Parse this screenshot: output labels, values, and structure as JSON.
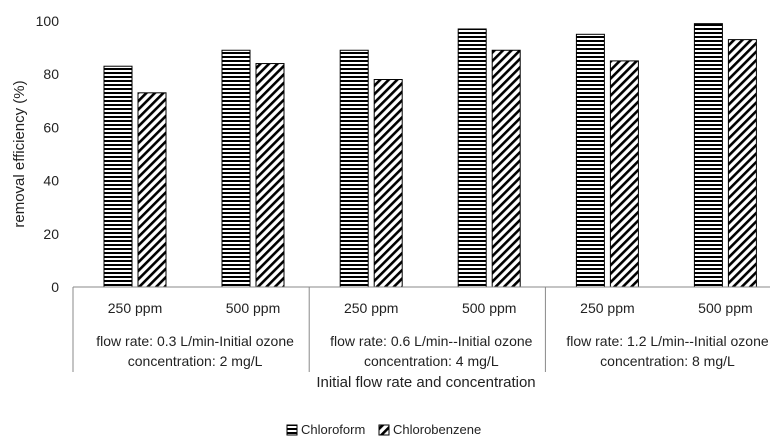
{
  "chart_data": {
    "type": "bar",
    "title": "",
    "xlabel": "Initial flow rate and concentration",
    "ylabel": "removal efficiency (%)",
    "ylim": [
      0,
      100
    ],
    "yticks": [
      "0",
      "20",
      "40",
      "60",
      "80",
      "100"
    ],
    "grid": false,
    "legend_position": "bottom",
    "groups": [
      "flow rate: 0.3 L/min-Initial ozone|concentration: 2 mg/L",
      "flow rate: 0.6 L/min--Initial ozone|concentration: 4 mg/L",
      "flow rate: 1.2 L/min--Initial ozone|concentration: 8 mg/L"
    ],
    "categories": [
      "250 ppm",
      "500 ppm",
      "250 ppm",
      "500 ppm",
      "250 ppm",
      "500 ppm"
    ],
    "series": [
      {
        "name": "Chloroform",
        "pattern": "horizontal-lines",
        "values": [
          83,
          89,
          89,
          97,
          95,
          99
        ]
      },
      {
        "name": "Chlorobenzene",
        "pattern": "diagonal-lines",
        "values": [
          73,
          84,
          78,
          89,
          85,
          93
        ]
      }
    ],
    "colors": {
      "stroke": "#000000",
      "fill": "#ffffff",
      "axis": "#888888"
    }
  }
}
